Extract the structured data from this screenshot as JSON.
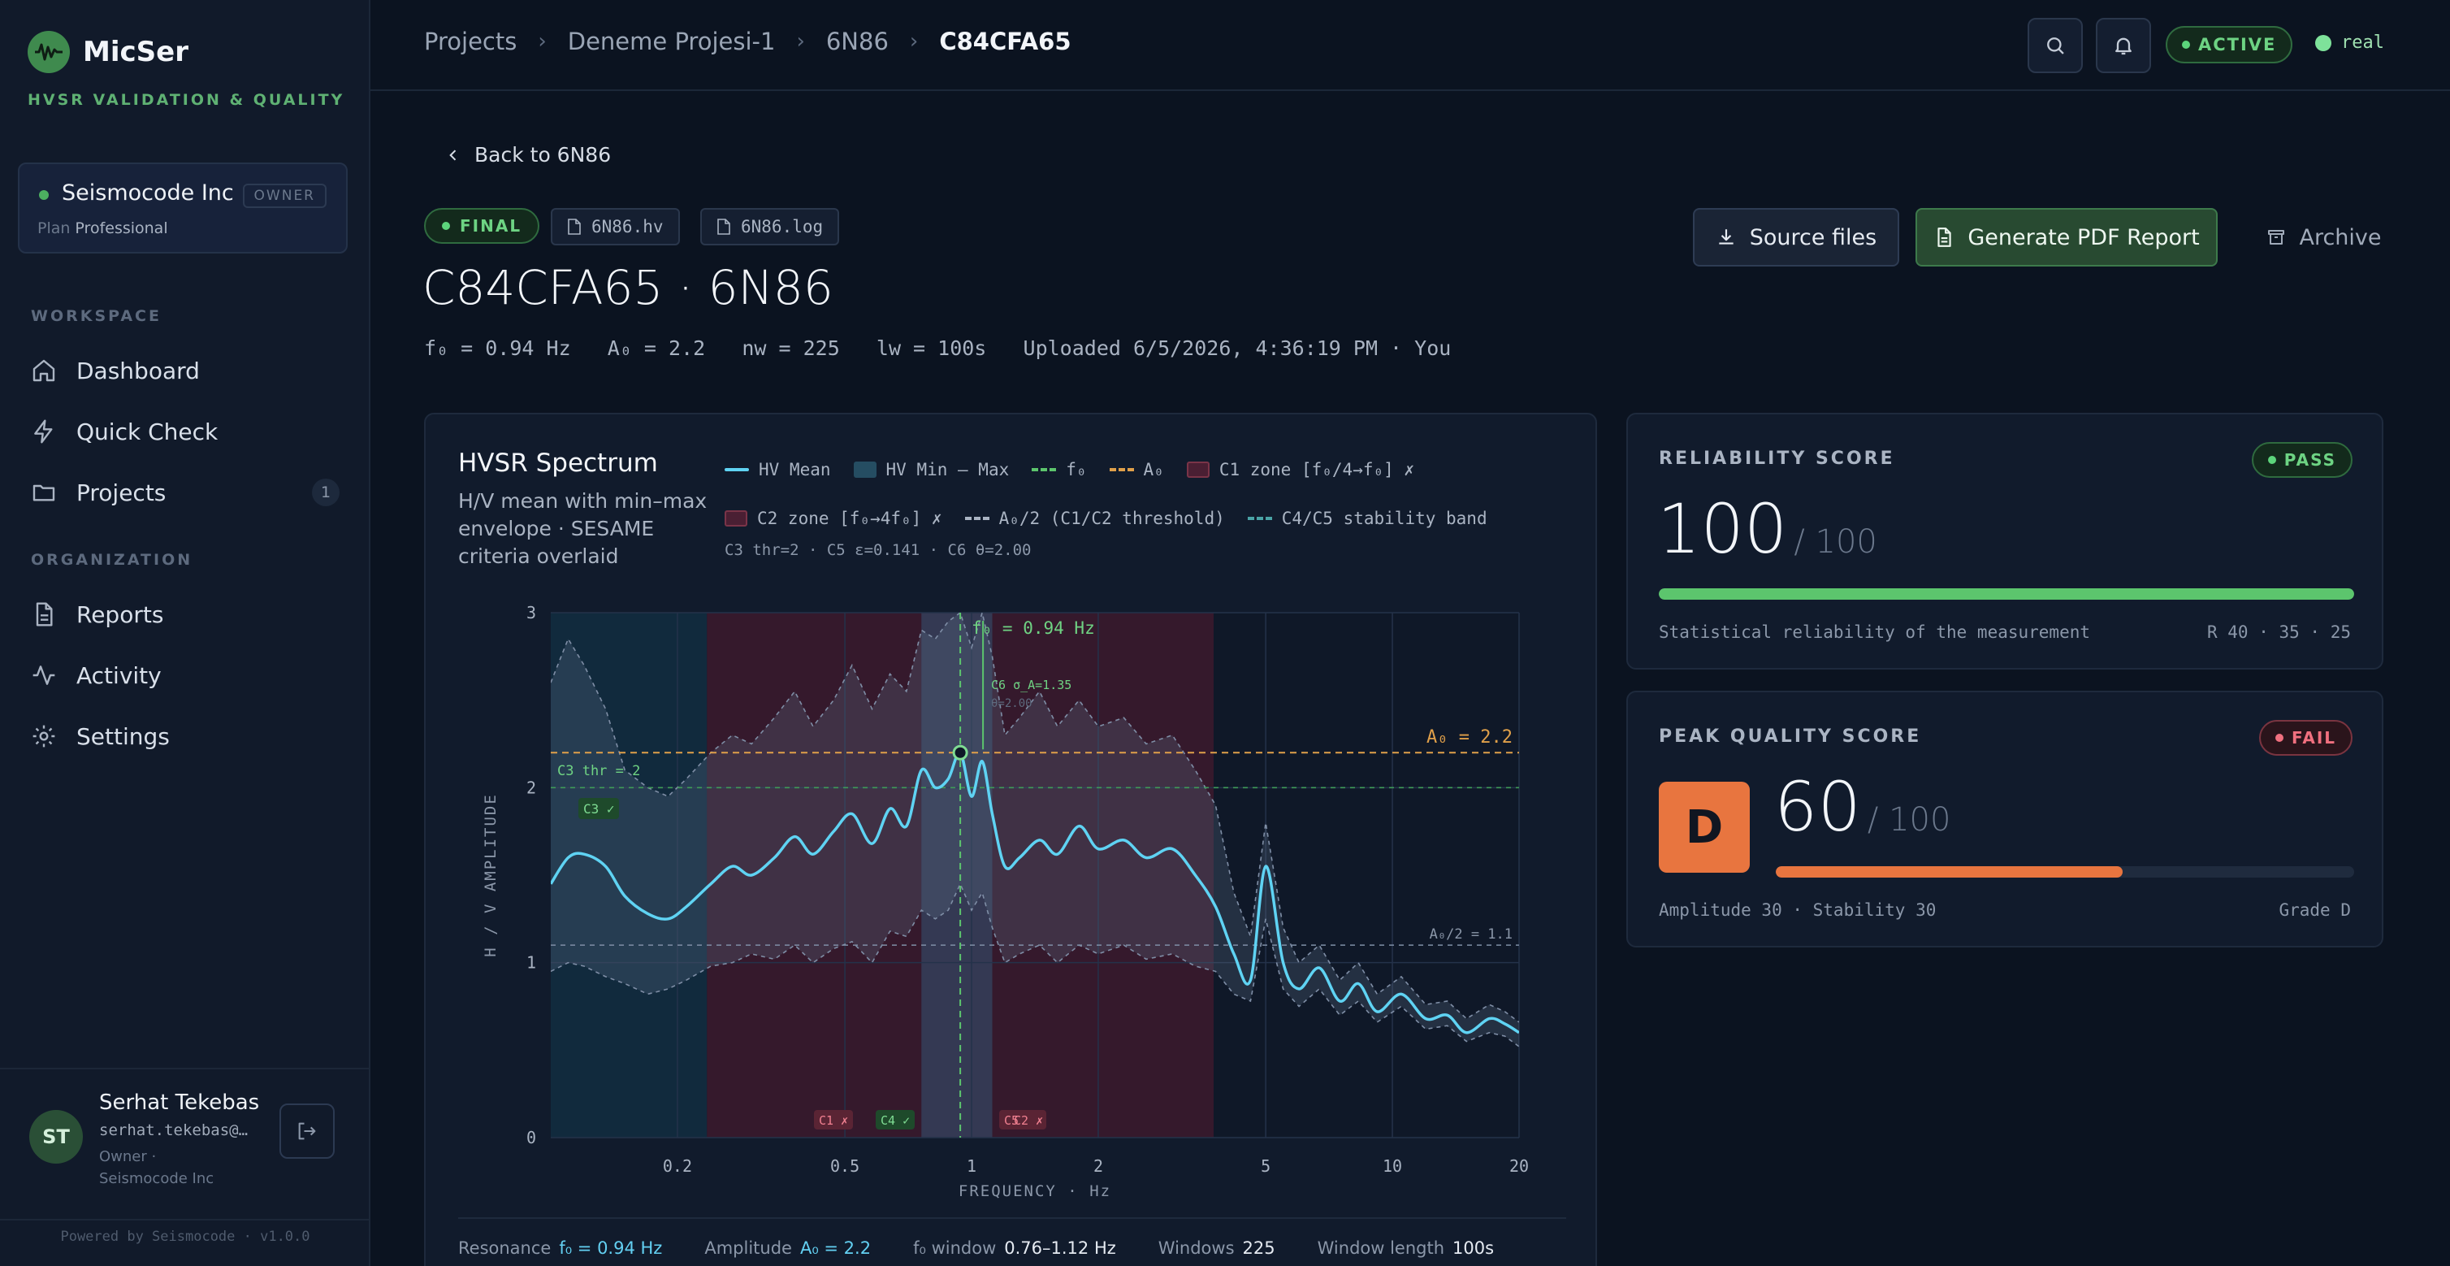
{
  "app": {
    "name": "MicSer",
    "tagline": "HVSR VALIDATION & QUALITY"
  },
  "org": {
    "name": "Seismocode Inc",
    "role_badge": "OWNER",
    "plan_label": "Plan",
    "plan": "Professional"
  },
  "nav": {
    "workspace_label": "WORKSPACE",
    "organization_label": "ORGANIZATION",
    "items": [
      {
        "label": "Dashboard",
        "icon": "home-icon"
      },
      {
        "label": "Quick Check",
        "icon": "bolt-icon"
      },
      {
        "label": "Projects",
        "icon": "folder-icon",
        "count": "1"
      },
      {
        "label": "Reports",
        "icon": "document-icon"
      },
      {
        "label": "Activity",
        "icon": "activity-icon"
      },
      {
        "label": "Settings",
        "icon": "gear-icon"
      }
    ]
  },
  "user": {
    "initials": "ST",
    "name": "Serhat Tekebas",
    "email": "serhat.tekebas@…",
    "role_line": "Owner ·",
    "org_line": "Seismocode Inc"
  },
  "footer": {
    "powered": "Powered by Seismocode · v1.0.0"
  },
  "topbar": {
    "breadcrumb": [
      "Projects",
      "Deneme Projesi-1",
      "6N86",
      "C84CFA65"
    ],
    "status": "ACTIVE",
    "env": "real"
  },
  "header": {
    "back_label": "Back to 6N86",
    "status_badge": "FINAL",
    "files": [
      "6N86.hv",
      "6N86.log"
    ],
    "title": "C84CFA65 · 6N86",
    "meta": "f₀ = 0.94 Hz   A₀ = 2.2   nw = 225   lw = 100s   Uploaded 6/5/2026, 4:36:19 PM · You",
    "buttons": {
      "source": "Source files",
      "pdf": "Generate PDF Report",
      "archive": "Archive"
    }
  },
  "spectrum": {
    "title": "HVSR Spectrum",
    "subtitle": "H/V mean with min–max envelope · SESAME criteria overlaid",
    "legend": {
      "mean": "HV Mean",
      "minmax": "HV Min – Max",
      "f0": "f₀",
      "a0": "A₀",
      "c1": "C1 zone [f₀/4→f₀] ✗",
      "c2": "C2 zone [f₀→4f₀] ✗",
      "half": "A₀/2 (C1/C2 threshold)",
      "stab": "C4/C5 stability band",
      "note": "C3 thr=2 · C5 ε=0.141 · C6 θ=2.00"
    },
    "annotations": {
      "f0_label": "f₀ = 0.94 Hz",
      "a0_label": "A₀ = 2.2",
      "half_label": "A₀/2 = 1.1",
      "c3_thr": "C3 thr = 2",
      "c3_ok": "C3 ✓",
      "c6_label": "C6 σ_A=1.35",
      "c6_theta": "θ=2.00",
      "c1_tag": "C1 ✗",
      "c4_tag": "C4 ✓",
      "c5_tag": "C5",
      "c2_tag": "C2 ✗"
    },
    "summary": [
      {
        "label": "Resonance",
        "value": "f₀ = 0.94 Hz",
        "accent": true
      },
      {
        "label": "Amplitude",
        "value": "A₀ = 2.2",
        "accent": true
      },
      {
        "label": "f₀ window",
        "value": "0.76–1.12 Hz"
      },
      {
        "label": "Windows",
        "value": "225"
      },
      {
        "label": "Window length",
        "value": "100s"
      }
    ]
  },
  "chart_data": {
    "type": "line",
    "title": "",
    "xlabel": "FREQUENCY · Hz",
    "ylabel": "H / V AMPLITUDE",
    "xscale": "log",
    "xlim": [
      0.1,
      20
    ],
    "ylim": [
      0,
      3
    ],
    "xticks": [
      0.2,
      0.5,
      1,
      2,
      5,
      10,
      20
    ],
    "yticks": [
      0,
      1,
      2,
      3
    ],
    "series": [
      {
        "name": "HV Mean",
        "x": [
          0.1,
          0.11,
          0.12,
          0.135,
          0.15,
          0.17,
          0.19,
          0.21,
          0.24,
          0.27,
          0.3,
          0.34,
          0.38,
          0.42,
          0.47,
          0.52,
          0.58,
          0.64,
          0.7,
          0.76,
          0.82,
          0.88,
          0.94,
          1.0,
          1.06,
          1.12,
          1.2,
          1.3,
          1.45,
          1.6,
          1.8,
          2.0,
          2.3,
          2.6,
          3.0,
          3.4,
          3.8,
          4.2,
          4.6,
          5.0,
          5.5,
          6.0,
          6.7,
          7.5,
          8.3,
          9.2,
          10.5,
          12,
          13.5,
          15,
          17,
          18.5,
          20
        ],
        "values": [
          1.45,
          1.6,
          1.62,
          1.55,
          1.38,
          1.28,
          1.25,
          1.32,
          1.45,
          1.55,
          1.5,
          1.6,
          1.72,
          1.62,
          1.75,
          1.85,
          1.68,
          1.88,
          1.78,
          2.1,
          2.0,
          2.05,
          2.2,
          1.95,
          2.15,
          1.85,
          1.55,
          1.6,
          1.7,
          1.62,
          1.78,
          1.65,
          1.7,
          1.6,
          1.65,
          1.5,
          1.32,
          1.05,
          0.9,
          1.55,
          1.0,
          0.85,
          0.97,
          0.78,
          0.88,
          0.72,
          0.82,
          0.68,
          0.7,
          0.6,
          0.68,
          0.65,
          0.6
        ]
      },
      {
        "name": "HV Min – Max",
        "x": [
          0.1,
          0.11,
          0.12,
          0.135,
          0.15,
          0.17,
          0.19,
          0.21,
          0.24,
          0.27,
          0.3,
          0.34,
          0.38,
          0.42,
          0.47,
          0.52,
          0.58,
          0.64,
          0.7,
          0.76,
          0.82,
          0.88,
          0.94,
          1.0,
          1.06,
          1.12,
          1.2,
          1.3,
          1.45,
          1.6,
          1.8,
          2.0,
          2.3,
          2.6,
          3.0,
          3.4,
          3.8,
          4.2,
          4.6,
          5.0,
          5.5,
          6.0,
          6.7,
          7.5,
          8.3,
          9.2,
          10.5,
          12,
          13.5,
          15,
          17,
          18.5,
          20
        ],
        "min": [
          0.95,
          1.0,
          0.98,
          0.92,
          0.88,
          0.82,
          0.85,
          0.9,
          0.98,
          1.0,
          1.05,
          1.02,
          1.1,
          1.0,
          1.08,
          1.12,
          1.0,
          1.18,
          1.15,
          1.3,
          1.25,
          1.3,
          1.45,
          1.3,
          1.4,
          1.2,
          1.0,
          1.05,
          1.1,
          1.0,
          1.1,
          1.05,
          1.1,
          1.02,
          1.05,
          0.98,
          0.95,
          0.82,
          0.78,
          1.25,
          0.85,
          0.75,
          0.85,
          0.7,
          0.78,
          0.66,
          0.75,
          0.62,
          0.64,
          0.55,
          0.6,
          0.58,
          0.52
        ],
        "max": [
          2.6,
          2.85,
          2.7,
          2.45,
          2.1,
          2.0,
          1.95,
          2.05,
          2.2,
          2.3,
          2.25,
          2.4,
          2.55,
          2.35,
          2.5,
          2.7,
          2.45,
          2.65,
          2.55,
          2.9,
          2.85,
          2.95,
          3.0,
          2.8,
          3.0,
          2.75,
          2.3,
          2.4,
          2.55,
          2.35,
          2.5,
          2.35,
          2.4,
          2.25,
          2.3,
          2.1,
          1.9,
          1.4,
          1.15,
          1.8,
          1.2,
          1.0,
          1.1,
          0.9,
          1.0,
          0.82,
          0.92,
          0.76,
          0.78,
          0.68,
          0.76,
          0.72,
          0.66
        ]
      }
    ],
    "f0": 0.94,
    "a0": 2.2,
    "half_a0": 1.1,
    "c3_threshold": 2,
    "c1_zone": [
      0.235,
      0.94
    ],
    "c2_zone": [
      0.94,
      3.76
    ],
    "stability_band": [
      0.76,
      1.12
    ],
    "grid": true,
    "legend_position": "top"
  },
  "reliability": {
    "label": "RELIABILITY SCORE",
    "status": "PASS",
    "score": "100",
    "max": "/ 100",
    "fraction": 1.0,
    "desc": "Statistical reliability of the measurement",
    "detail": "R 40 · 35 · 25"
  },
  "peak_quality": {
    "label": "PEAK QUALITY SCORE",
    "status": "FAIL",
    "grade": "D",
    "score": "60",
    "max": "/ 100",
    "fraction": 0.6,
    "desc": "Amplitude 30 · Stability 30",
    "detail": "Grade D"
  },
  "colors": {
    "accent_green": "#5cd47b",
    "mean_line": "#5fd3f3",
    "a0_line": "#e0a04a",
    "f0_line": "#5cc56d",
    "grade_orange": "#e8753f",
    "fail_red": "#f0707f"
  }
}
